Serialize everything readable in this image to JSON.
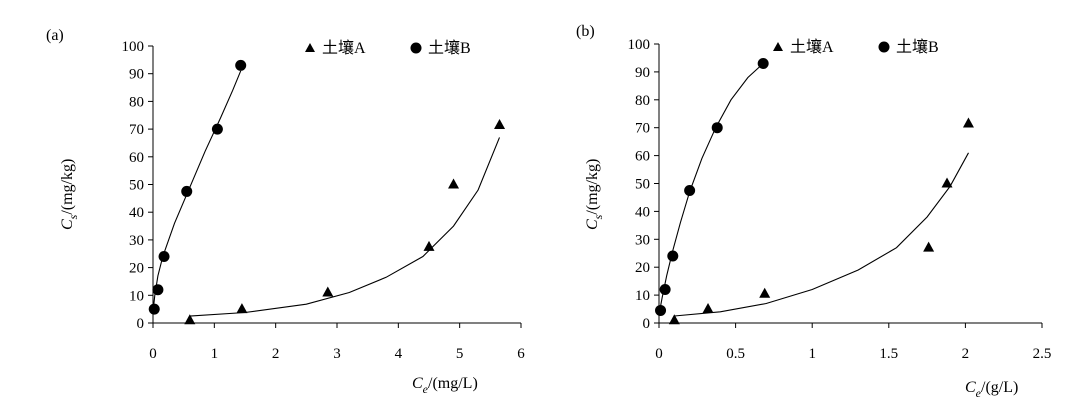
{
  "chart_data": [
    {
      "type": "scatter",
      "panel_label": "(a)",
      "xlabel": {
        "symbol": "C",
        "subscript": "e",
        "unit": "/(mg/L)"
      },
      "ylabel": {
        "symbol": "C",
        "subscript": "s",
        "unit": "/(mg/kg)"
      },
      "xlim": [
        0,
        6
      ],
      "ylim": [
        0,
        100
      ],
      "x_ticks": [
        "0",
        "1",
        "2",
        "3",
        "4",
        "5",
        "6"
      ],
      "y_ticks": [
        "0",
        "10",
        "20",
        "30",
        "40",
        "50",
        "60",
        "70",
        "80",
        "90",
        "100"
      ],
      "grid": false,
      "legend_position": "top-right",
      "series": [
        {
          "name": "土壤A",
          "marker": "triangle",
          "points": [
            [
              0.6,
              1
            ],
            [
              1.45,
              5
            ],
            [
              2.85,
              11
            ],
            [
              4.5,
              27.5
            ],
            [
              4.9,
              50
            ],
            [
              5.65,
              71.5
            ]
          ],
          "fit_curve": [
            [
              0.6,
              2.5
            ],
            [
              1.5,
              3.8
            ],
            [
              2.5,
              6.8
            ],
            [
              3.2,
              11
            ],
            [
              3.8,
              16.5
            ],
            [
              4.4,
              24
            ],
            [
              4.9,
              35
            ],
            [
              5.3,
              48
            ],
            [
              5.65,
              67
            ]
          ]
        },
        {
          "name": "土壤B",
          "marker": "circle",
          "points": [
            [
              0.02,
              5
            ],
            [
              0.08,
              12
            ],
            [
              0.18,
              24
            ],
            [
              0.55,
              47.5
            ],
            [
              1.05,
              70
            ],
            [
              1.43,
              93
            ]
          ],
          "fit_curve": [
            [
              0.0,
              4
            ],
            [
              0.03,
              10
            ],
            [
              0.08,
              17
            ],
            [
              0.16,
              24
            ],
            [
              0.35,
              36
            ],
            [
              0.6,
              49
            ],
            [
              0.85,
              62
            ],
            [
              1.1,
              74
            ],
            [
              1.3,
              84
            ],
            [
              1.43,
              91
            ]
          ]
        }
      ]
    },
    {
      "type": "scatter",
      "panel_label": "(b)",
      "xlabel": {
        "symbol": "C",
        "subscript": "e",
        "unit": "/(g/L)"
      },
      "ylabel": {
        "symbol": "C",
        "subscript": "s",
        "unit": "/(mg/kg)"
      },
      "xlim": [
        0,
        2.5
      ],
      "ylim": [
        0,
        100
      ],
      "x_ticks": [
        "0",
        "0.5",
        "1",
        "1.5",
        "2",
        "2.5"
      ],
      "y_ticks": [
        "0",
        "10",
        "20",
        "30",
        "40",
        "50",
        "60",
        "70",
        "80",
        "90",
        "100"
      ],
      "grid": false,
      "legend_position": "top-right",
      "series": [
        {
          "name": "土壤A",
          "marker": "triangle",
          "points": [
            [
              0.1,
              1
            ],
            [
              0.32,
              5
            ],
            [
              0.69,
              10.5
            ],
            [
              1.76,
              27
            ],
            [
              1.88,
              50
            ],
            [
              2.02,
              71.5
            ]
          ],
          "fit_curve": [
            [
              0.1,
              2.5
            ],
            [
              0.4,
              4
            ],
            [
              0.7,
              7
            ],
            [
              1.0,
              12
            ],
            [
              1.3,
              19
            ],
            [
              1.55,
              27
            ],
            [
              1.75,
              38
            ],
            [
              1.9,
              49
            ],
            [
              2.02,
              61
            ]
          ]
        },
        {
          "name": "土壤B",
          "marker": "circle",
          "points": [
            [
              0.01,
              4.5
            ],
            [
              0.04,
              12
            ],
            [
              0.09,
              24
            ],
            [
              0.2,
              47.5
            ],
            [
              0.38,
              70
            ],
            [
              0.68,
              93
            ]
          ],
          "fit_curve": [
            [
              0.0,
              3
            ],
            [
              0.02,
              9
            ],
            [
              0.05,
              17
            ],
            [
              0.09,
              26
            ],
            [
              0.14,
              36
            ],
            [
              0.2,
              47
            ],
            [
              0.28,
              59
            ],
            [
              0.37,
              70
            ],
            [
              0.47,
              80
            ],
            [
              0.58,
              88
            ],
            [
              0.68,
              93
            ]
          ]
        }
      ]
    }
  ]
}
